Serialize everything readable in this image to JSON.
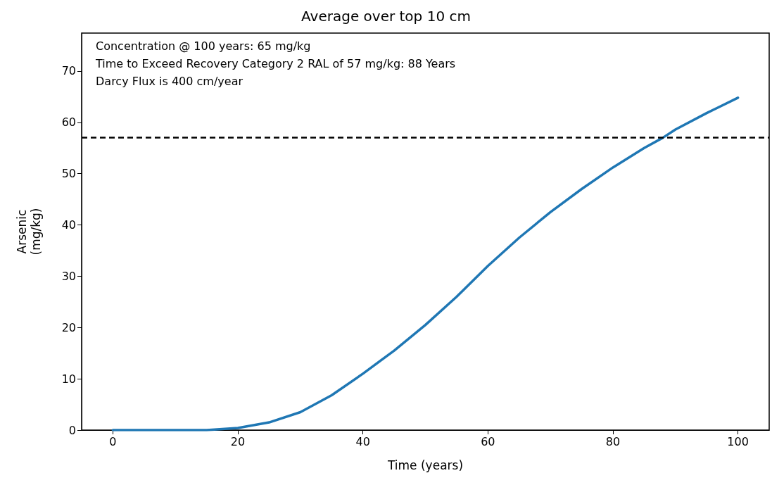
{
  "chart_data": {
    "type": "line",
    "title": "Average over top 10 cm",
    "xlabel": "Time (years)",
    "ylabel": "Arsenic\n(mg/kg)",
    "annotations": [
      "Concentration @ 100 years: 65 mg/kg",
      "Time to Exceed Recovery Category 2 RAL of 57 mg/kg: 88 Years",
      "Darcy Flux is 400 cm/year"
    ],
    "x": [
      0,
      10,
      15,
      20,
      25,
      30,
      35,
      40,
      45,
      50,
      55,
      60,
      65,
      70,
      75,
      80,
      85,
      88,
      90,
      95,
      100
    ],
    "series": [
      {
        "color": "#1f77b4",
        "values": [
          0,
          0,
          0,
          0.4,
          1.5,
          3.5,
          6.8,
          11,
          15.5,
          20.5,
          26,
          32,
          37.5,
          42.5,
          47,
          51.2,
          55,
          57,
          58.6,
          61.8,
          64.8
        ]
      }
    ],
    "xlim": [
      -5,
      105
    ],
    "xticks": [
      0,
      20,
      40,
      60,
      80,
      100
    ],
    "ylim": [
      0,
      77.4
    ],
    "yticks": [
      0,
      10,
      20,
      30,
      40,
      50,
      60,
      70
    ],
    "ref_lines": [
      {
        "axis": "y",
        "value": 57,
        "color": "#000000",
        "line_style": "dashed"
      }
    ],
    "grid": false,
    "marker": "none",
    "line_style": "solid"
  }
}
